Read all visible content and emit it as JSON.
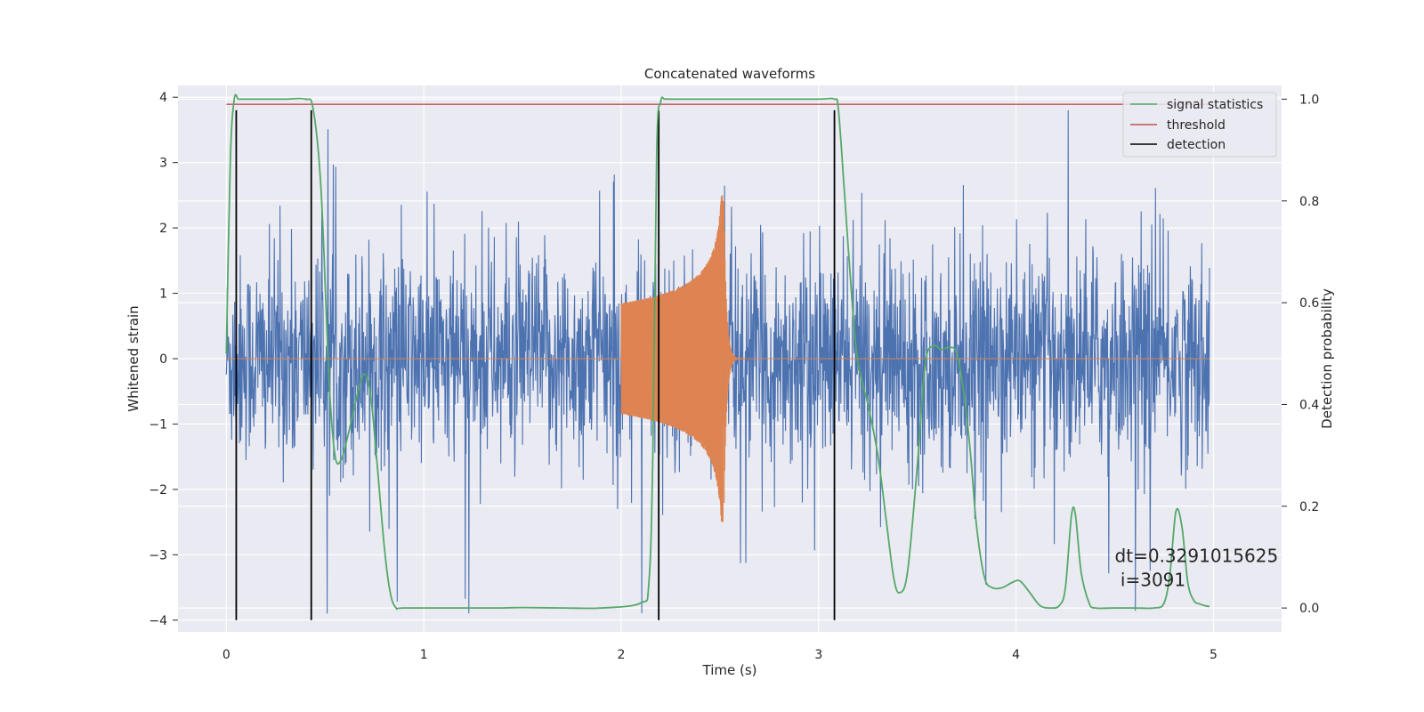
{
  "chart_data": {
    "type": "line",
    "title": "Concatenated waveforms",
    "xlabel": "Time (s)",
    "ylabel": "Whitened strain",
    "ylabel_right": "Detection probability",
    "xlim": [
      -0.245,
      5.345
    ],
    "ylim": [
      -4.18,
      4.18
    ],
    "ylim_right": [
      -0.047,
      1.027
    ],
    "x_ticks": [
      0,
      1,
      2,
      3,
      4,
      5
    ],
    "y_ticks": [
      -4,
      -3,
      -2,
      -1,
      0,
      1,
      2,
      3,
      4
    ],
    "y_ticks_right": [
      0.0,
      0.2,
      0.4,
      0.6,
      0.8,
      1.0
    ],
    "x_tick_labels": [
      "0",
      "1",
      "2",
      "3",
      "4",
      "5"
    ],
    "y_tick_labels": [
      "−4",
      "−3",
      "−2",
      "−1",
      "0",
      "1",
      "2",
      "3",
      "4"
    ],
    "y_tick_labels_right": [
      "0.0",
      "0.2",
      "0.4",
      "0.6",
      "0.8",
      "1.0"
    ],
    "grid": true,
    "legend_position": "top-right",
    "colors": {
      "background": "#eaeaf2",
      "grid": "#ffffff",
      "strain": "#4c72b0",
      "waveform": "#dd8452",
      "signal_statistics": "#55a868",
      "threshold": "#c44e52",
      "detection": "#000000"
    },
    "series": [
      {
        "name": "signal statistics",
        "axis": "right",
        "x": [
          0.0,
          0.02,
          0.04,
          0.06,
          0.08,
          0.12,
          0.2,
          0.3,
          0.4,
          0.44,
          0.48,
          0.52,
          0.55,
          0.58,
          0.61,
          0.64,
          0.67,
          0.7,
          0.73,
          0.76,
          0.8,
          0.83,
          0.86,
          0.9,
          1.2,
          1.4,
          1.5,
          1.7,
          1.9,
          2.1,
          2.14,
          2.16,
          2.18,
          2.2,
          2.22,
          2.25,
          2.3,
          2.5,
          2.8,
          3.0,
          3.08,
          3.1,
          3.13,
          3.17,
          3.2,
          3.25,
          3.3,
          3.34,
          3.38,
          3.41,
          3.45,
          3.5,
          3.54,
          3.58,
          3.62,
          3.66,
          3.7,
          3.74,
          3.77,
          3.8,
          3.84,
          3.88,
          3.93,
          3.98,
          4.02,
          4.07,
          4.12,
          4.17,
          4.22,
          4.25,
          4.28,
          4.3,
          4.33,
          4.37,
          4.4,
          4.5,
          4.6,
          4.7,
          4.75,
          4.78,
          4.81,
          4.84,
          4.87,
          4.9,
          4.93,
          4.96,
          4.98
        ],
        "values": [
          0.5,
          0.88,
          1.0,
          1.0,
          1.0,
          1.0,
          1.0,
          1.0,
          1.0,
          0.98,
          0.82,
          0.45,
          0.3,
          0.29,
          0.33,
          0.38,
          0.43,
          0.46,
          0.42,
          0.3,
          0.12,
          0.03,
          0.0,
          0.0,
          0.0,
          0.0,
          0.001,
          0.0,
          0.0,
          0.01,
          0.05,
          0.3,
          0.9,
          0.995,
          1.0,
          1.0,
          1.0,
          1.0,
          1.0,
          1.0,
          1.0,
          0.98,
          0.82,
          0.6,
          0.48,
          0.4,
          0.3,
          0.18,
          0.06,
          0.03,
          0.07,
          0.28,
          0.48,
          0.515,
          0.508,
          0.512,
          0.5,
          0.41,
          0.3,
          0.16,
          0.06,
          0.04,
          0.04,
          0.05,
          0.053,
          0.03,
          0.005,
          0.0,
          0.005,
          0.04,
          0.18,
          0.185,
          0.07,
          0.01,
          0.0,
          0.0,
          0.0,
          0.0,
          0.01,
          0.07,
          0.19,
          0.16,
          0.05,
          0.015,
          0.008,
          0.004,
          0.003
        ]
      },
      {
        "name": "threshold",
        "axis": "right",
        "x": [
          0.0,
          4.98
        ],
        "values": [
          0.99,
          0.99
        ]
      },
      {
        "name": "detection",
        "axis": "left",
        "x": [
          0.05,
          0.43,
          2.19,
          3.08
        ],
        "y_range": [
          -4.0,
          3.8
        ]
      }
    ],
    "annotation": {
      "line1": "dt=0.3291015625",
      "line2": " i=3091",
      "x": 4.5,
      "y": -3.04
    }
  }
}
